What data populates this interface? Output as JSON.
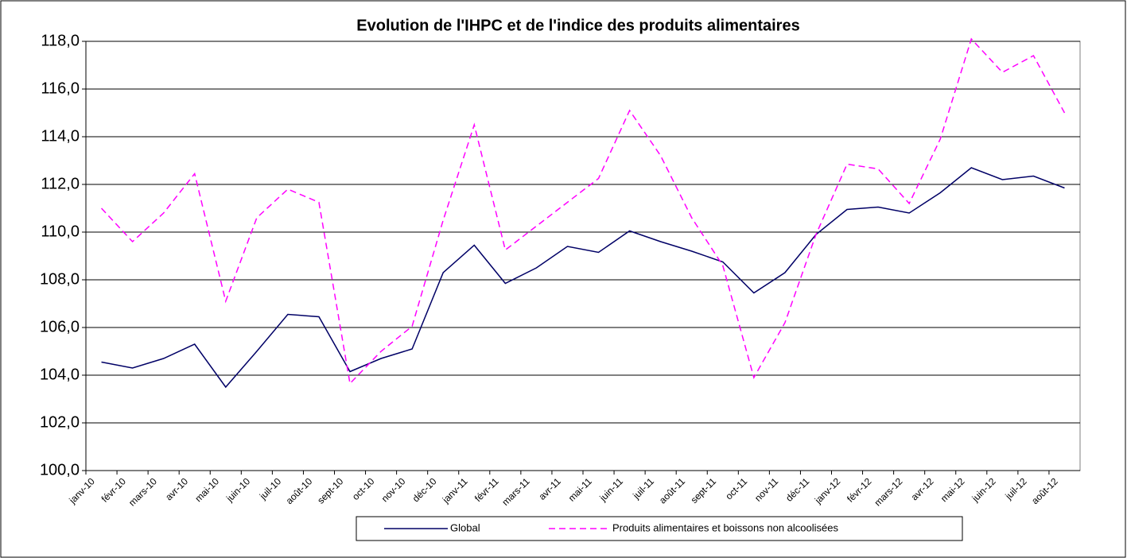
{
  "chart_data": {
    "type": "line",
    "title": "Evolution de l'IHPC et de l'indice des produits alimentaires",
    "categories": [
      "janv-10",
      "févr-10",
      "mars-10",
      "avr-10",
      "mai-10",
      "juin-10",
      "juil-10",
      "août-10",
      "sept-10",
      "oct-10",
      "nov-10",
      "déc-10",
      "janv-11",
      "févr-11",
      "mars-11",
      "avr-11",
      "mai-11",
      "juin-11",
      "juil-11",
      "août-11",
      "sept-11",
      "oct-11",
      "nov-11",
      "déc-11",
      "janv-12",
      "févr-12",
      "mars-12",
      "avr-12",
      "mai-12",
      "juin-12",
      "juil-12",
      "août-12"
    ],
    "series": [
      {
        "name": "Global",
        "color": "#000066",
        "dash": false,
        "values": [
          104.55,
          104.3,
          104.7,
          105.3,
          103.5,
          105.0,
          106.55,
          106.45,
          104.15,
          104.7,
          105.1,
          108.3,
          109.45,
          107.85,
          108.5,
          109.4,
          109.15,
          110.05,
          109.6,
          109.2,
          108.75,
          107.45,
          108.3,
          109.9,
          110.95,
          111.05,
          110.8,
          111.65,
          112.7,
          112.2,
          112.35,
          111.85
        ]
      },
      {
        "name": "Produits alimentaires et boissons non alcoolisées",
        "color": "#ff00ff",
        "dash": true,
        "values": [
          111.0,
          109.6,
          110.8,
          112.45,
          107.1,
          110.6,
          111.8,
          111.25,
          103.65,
          105.0,
          106.05,
          110.5,
          114.5,
          109.25,
          110.25,
          111.25,
          112.25,
          115.1,
          113.2,
          110.6,
          108.6,
          103.9,
          106.2,
          109.9,
          112.85,
          112.65,
          111.2,
          113.9,
          118.1,
          116.7,
          117.4,
          115.0
        ]
      }
    ],
    "ylim": [
      100,
      118
    ],
    "yticks": [
      {
        "value": 100,
        "label": "100,0"
      },
      {
        "value": 102,
        "label": "102,0"
      },
      {
        "value": 104,
        "label": "104,0"
      },
      {
        "value": 106,
        "label": "106,0"
      },
      {
        "value": 108,
        "label": "108,0"
      },
      {
        "value": 110,
        "label": "110,0"
      },
      {
        "value": 112,
        "label": "112,0"
      },
      {
        "value": 114,
        "label": "114,0"
      },
      {
        "value": 116,
        "label": "116,0"
      },
      {
        "value": 118,
        "label": "118,0"
      }
    ],
    "grid": true,
    "legend": "bottom"
  }
}
